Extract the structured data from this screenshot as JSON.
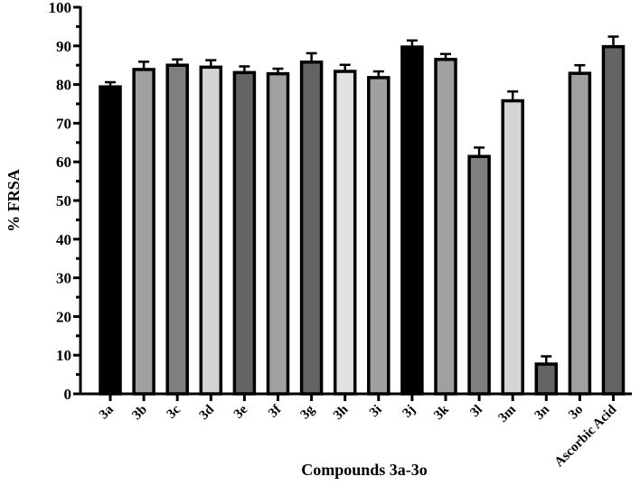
{
  "chart_data": {
    "type": "bar",
    "title": "",
    "xlabel": "Compounds 3a-3o",
    "ylabel": "% FRSA",
    "ylim": [
      0,
      100
    ],
    "yticks": [
      0,
      10,
      20,
      30,
      40,
      50,
      60,
      70,
      80,
      90,
      100
    ],
    "grid": false,
    "legend": null,
    "categories": [
      "3a",
      "3b",
      "3c",
      "3d",
      "3e",
      "3f",
      "3g",
      "3h",
      "3i",
      "3j",
      "3k",
      "3l",
      "3m",
      "3n",
      "3o",
      "Ascorbic Acid"
    ],
    "values": [
      79.4,
      83.9,
      85.0,
      84.5,
      83.1,
      82.8,
      85.8,
      83.4,
      81.8,
      89.7,
      86.5,
      61.4,
      75.8,
      7.7,
      82.9,
      89.8
    ],
    "error": [
      1.2,
      2.0,
      1.5,
      1.8,
      1.6,
      1.3,
      2.3,
      1.7,
      1.6,
      1.7,
      1.4,
      2.3,
      2.4,
      2.0,
      2.1,
      2.6
    ],
    "bar_colors": [
      "#000000",
      "#a0a0a0",
      "#7f7f7f",
      "#d4d4d4",
      "#646464",
      "#a0a0a0",
      "#646464",
      "#e2e2e2",
      "#a0a0a0",
      "#000000",
      "#a0a0a0",
      "#7f7f7f",
      "#d4d4d4",
      "#646464",
      "#a0a0a0",
      "#646464"
    ]
  }
}
